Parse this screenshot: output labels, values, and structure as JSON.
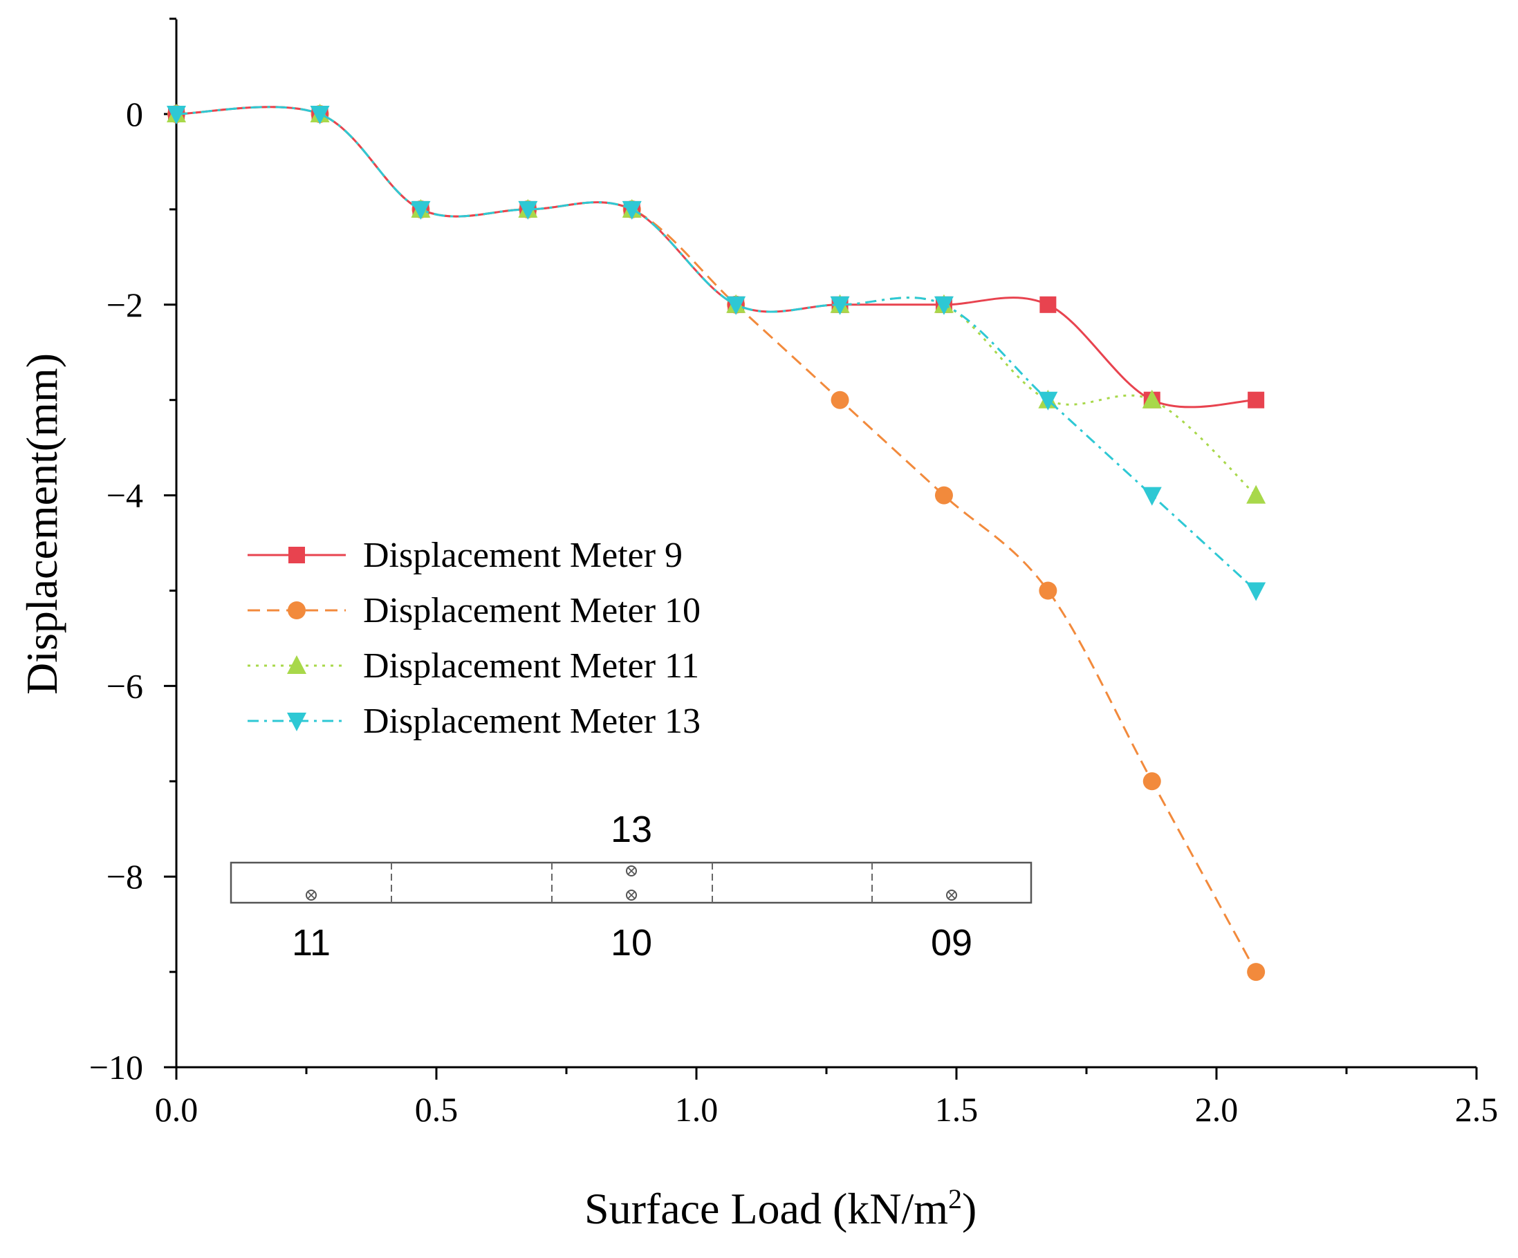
{
  "chart_data": {
    "type": "line",
    "title": "",
    "xlabel_main": "Surface Load (kN/m",
    "xlabel_sup": "2",
    "xlabel_close": ")",
    "ylabel": "Displacement(mm)",
    "xlim": [
      0,
      2.5
    ],
    "ylim": [
      -10,
      1
    ],
    "xticks": [
      0.0,
      0.5,
      1.0,
      1.5,
      2.0,
      2.5
    ],
    "xtick_labels": [
      "0.0",
      "0.5",
      "1.0",
      "1.5",
      "2.0",
      "2.5"
    ],
    "yticks": [
      0,
      -2,
      -4,
      -6,
      -8,
      -10
    ],
    "ytick_labels": [
      "0",
      "−2",
      "−4",
      "−6",
      "−8",
      "−10"
    ],
    "grid": false,
    "legend_position": "middle-left",
    "series": [
      {
        "name": "Displacement Meter 9",
        "color": "#e8434f",
        "marker": "square",
        "dash": "solid",
        "x": [
          0,
          0.276,
          0.47,
          0.676,
          0.876,
          1.076,
          1.276,
          1.476,
          1.676,
          1.876,
          2.076
        ],
        "y": [
          0,
          0,
          -1,
          -1,
          -1,
          -2,
          -2,
          -2,
          -2,
          -3,
          -3
        ]
      },
      {
        "name": "Displacement Meter 10",
        "color": "#f28a3c",
        "marker": "circle",
        "dash": "dashed",
        "x": [
          0,
          0.276,
          0.47,
          0.676,
          0.876,
          1.076,
          1.276,
          1.476,
          1.676,
          1.876,
          2.076
        ],
        "y": [
          0,
          0,
          -1,
          -1,
          -1,
          -2,
          -3,
          -4,
          -5,
          -7,
          -9
        ]
      },
      {
        "name": "Displacement Meter 11",
        "color": "#a8d84a",
        "marker": "triangle-up",
        "dash": "dotted",
        "x": [
          0,
          0.276,
          0.47,
          0.676,
          0.876,
          1.076,
          1.276,
          1.476,
          1.676,
          1.876,
          2.076
        ],
        "y": [
          0,
          0,
          -1,
          -1,
          -1,
          -2,
          -2,
          -2,
          -3,
          -3,
          -4
        ]
      },
      {
        "name": "Displacement Meter 13",
        "color": "#2ec8d4",
        "marker": "triangle-down",
        "dash": "dash-dot",
        "x": [
          0,
          0.276,
          0.47,
          0.676,
          0.876,
          1.076,
          1.276,
          1.476,
          1.676,
          1.876,
          2.076
        ],
        "y": [
          0,
          0,
          -1,
          -1,
          -1,
          -2,
          -2,
          -2,
          -3,
          -4,
          -5
        ]
      }
    ],
    "inset": {
      "labels_top": [
        "13"
      ],
      "labels_bottom": [
        "11",
        "10",
        "09"
      ]
    }
  }
}
